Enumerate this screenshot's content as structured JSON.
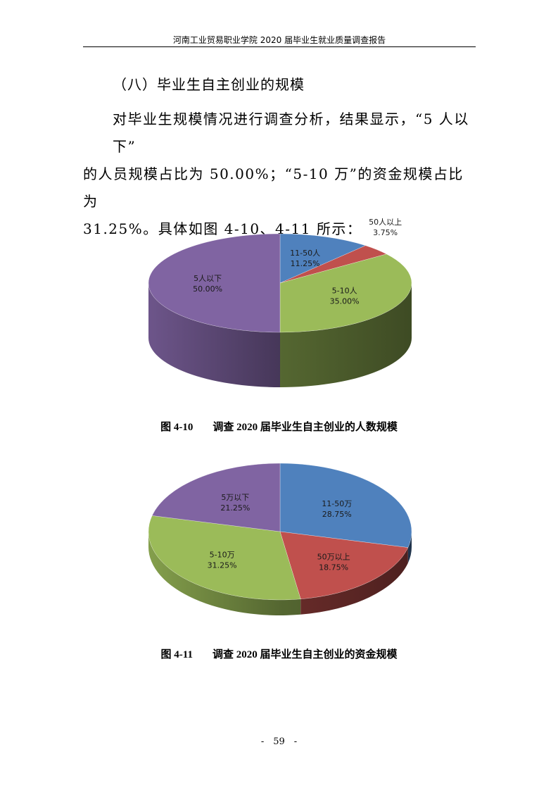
{
  "header": {
    "title": "河南工业贸易职业学院 2020 届毕业生就业质量调查报告"
  },
  "section": {
    "title": "（八）毕业生自主创业的规模"
  },
  "body": {
    "line1": "对毕业生规模情况进行调查分析，结果显示，“5 人以下”",
    "line2": "的人员规模占比为 50.00%；“5-10 万”的资金规模占比为",
    "line3": "31.25%。具体如图 4-10、4-11 所示："
  },
  "chart_data": [
    {
      "type": "pie",
      "style": "3d",
      "title": "",
      "slices": [
        {
          "label": "11-50人",
          "value": 11.25,
          "display": "11.25%",
          "color": "#4f81bd"
        },
        {
          "label": "50人以上",
          "value": 3.75,
          "display": "3.75%",
          "color": "#c0504d"
        },
        {
          "label": "5-10人",
          "value": 35.0,
          "display": "35.00%",
          "color": "#9bbb59"
        },
        {
          "label": "5人以下",
          "value": 50.0,
          "display": "50.00%",
          "color": "#8064a2"
        }
      ]
    },
    {
      "type": "pie",
      "style": "3d",
      "title": "",
      "slices": [
        {
          "label": "11-50万",
          "value": 28.75,
          "display": "28.75%",
          "color": "#4f81bd"
        },
        {
          "label": "50万以上",
          "value": 18.75,
          "display": "18.75%",
          "color": "#c0504d"
        },
        {
          "label": "5-10万",
          "value": 31.25,
          "display": "31.25%",
          "color": "#9bbb59"
        },
        {
          "label": "5万以下",
          "value": 21.25,
          "display": "21.25%",
          "color": "#8064a2"
        }
      ]
    }
  ],
  "captions": [
    {
      "num": "图 4-10",
      "text": "调查 2020 届毕业生自主创业的人数规模"
    },
    {
      "num": "图 4-11",
      "text": "调查 2020 届毕业生自主创业的资金规模"
    }
  ],
  "footer": {
    "page": "-　59　-"
  }
}
